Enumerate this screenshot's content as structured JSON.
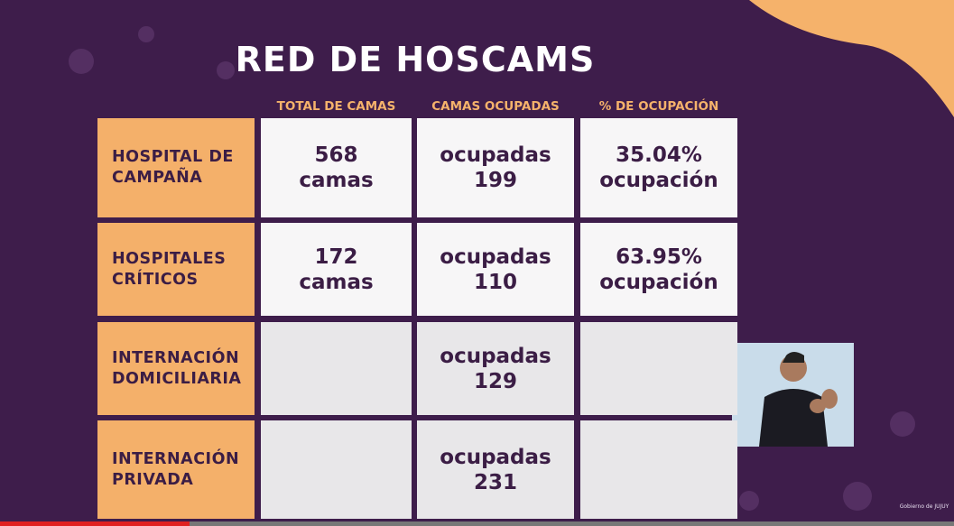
{
  "header": {
    "title": "RED DE HOSCAMS"
  },
  "table": {
    "columns": [
      "TOTAL DE CAMAS",
      "CAMAS OCUPADAS",
      "% DE OCUPACIÓN"
    ],
    "rows": [
      {
        "label": [
          "HOSPITAL DE",
          "CAMPAÑA"
        ],
        "cells": [
          [
            "568",
            "camas"
          ],
          [
            "ocupadas",
            "199"
          ],
          [
            "35.04%",
            "ocupación"
          ]
        ]
      },
      {
        "label": [
          "HOSPITALES",
          "CRÍTICOS"
        ],
        "cells": [
          [
            "172",
            "camas"
          ],
          [
            "ocupadas",
            "110"
          ],
          [
            "63.95%",
            "ocupación"
          ]
        ]
      },
      {
        "label": [
          "INTERNACIÓN",
          "DOMICILIARIA"
        ],
        "cells": [
          null,
          [
            "ocupadas",
            "129"
          ],
          null
        ]
      },
      {
        "label": [
          "INTERNACIÓN",
          "PRIVADA"
        ],
        "cells": [
          null,
          [
            "ocupadas",
            "231"
          ],
          null
        ]
      }
    ]
  },
  "footer": {
    "logo": "Gobierno de JUJUY"
  }
}
